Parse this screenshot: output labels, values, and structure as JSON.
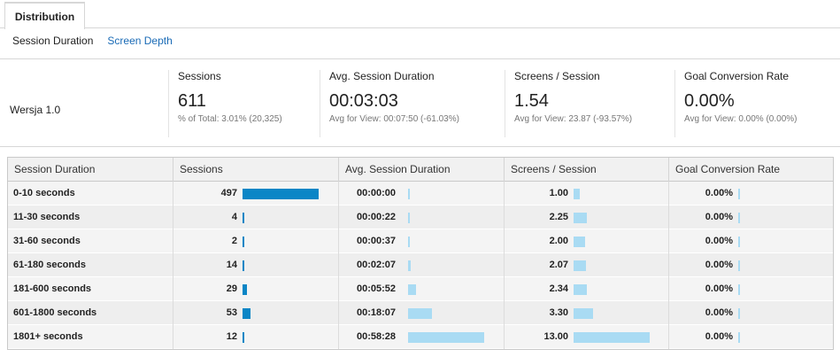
{
  "tabs": {
    "distribution": "Distribution"
  },
  "subtabs": {
    "session_duration": "Session Duration",
    "screen_depth": "Screen Depth"
  },
  "summary": {
    "segment": "Wersja 1.0",
    "metrics": [
      {
        "title": "Sessions",
        "value": "611",
        "sub": "% of Total: 3.01% (20,325)"
      },
      {
        "title": "Avg. Session Duration",
        "value": "00:03:03",
        "sub": "Avg for View: 00:07:50 (-61.03%)"
      },
      {
        "title": "Screens / Session",
        "value": "1.54",
        "sub": "Avg for View: 23.87 (-93.57%)"
      },
      {
        "title": "Goal Conversion Rate",
        "value": "0.00%",
        "sub": "Avg for View: 0.00% (0.00%)"
      }
    ]
  },
  "table": {
    "headers": [
      "Session Duration",
      "Sessions",
      "Avg. Session Duration",
      "Screens / Session",
      "Goal Conversion Rate"
    ],
    "rows": [
      {
        "label": "0-10 seconds",
        "sessions": "497",
        "sessions_n": 497,
        "duration": "00:00:00",
        "duration_s": 0,
        "screens": "1.00",
        "screens_n": 1.0,
        "conversion": "0.00%"
      },
      {
        "label": "11-30 seconds",
        "sessions": "4",
        "sessions_n": 4,
        "duration": "00:00:22",
        "duration_s": 22,
        "screens": "2.25",
        "screens_n": 2.25,
        "conversion": "0.00%"
      },
      {
        "label": "31-60 seconds",
        "sessions": "2",
        "sessions_n": 2,
        "duration": "00:00:37",
        "duration_s": 37,
        "screens": "2.00",
        "screens_n": 2.0,
        "conversion": "0.00%"
      },
      {
        "label": "61-180 seconds",
        "sessions": "14",
        "sessions_n": 14,
        "duration": "00:02:07",
        "duration_s": 127,
        "screens": "2.07",
        "screens_n": 2.07,
        "conversion": "0.00%"
      },
      {
        "label": "181-600 seconds",
        "sessions": "29",
        "sessions_n": 29,
        "duration": "00:05:52",
        "duration_s": 352,
        "screens": "2.34",
        "screens_n": 2.34,
        "conversion": "0.00%"
      },
      {
        "label": "601-1800 seconds",
        "sessions": "53",
        "sessions_n": 53,
        "duration": "00:18:07",
        "duration_s": 1087,
        "screens": "3.30",
        "screens_n": 3.3,
        "conversion": "0.00%"
      },
      {
        "label": "1801+ seconds",
        "sessions": "12",
        "sessions_n": 12,
        "duration": "00:58:28",
        "duration_s": 3508,
        "screens": "13.00",
        "screens_n": 13.0,
        "conversion": "0.00%"
      }
    ]
  },
  "colors": {
    "sessions_bar": "#0b86c6",
    "metric_bar": "#a9dbf3",
    "link": "#1a6bb6"
  }
}
